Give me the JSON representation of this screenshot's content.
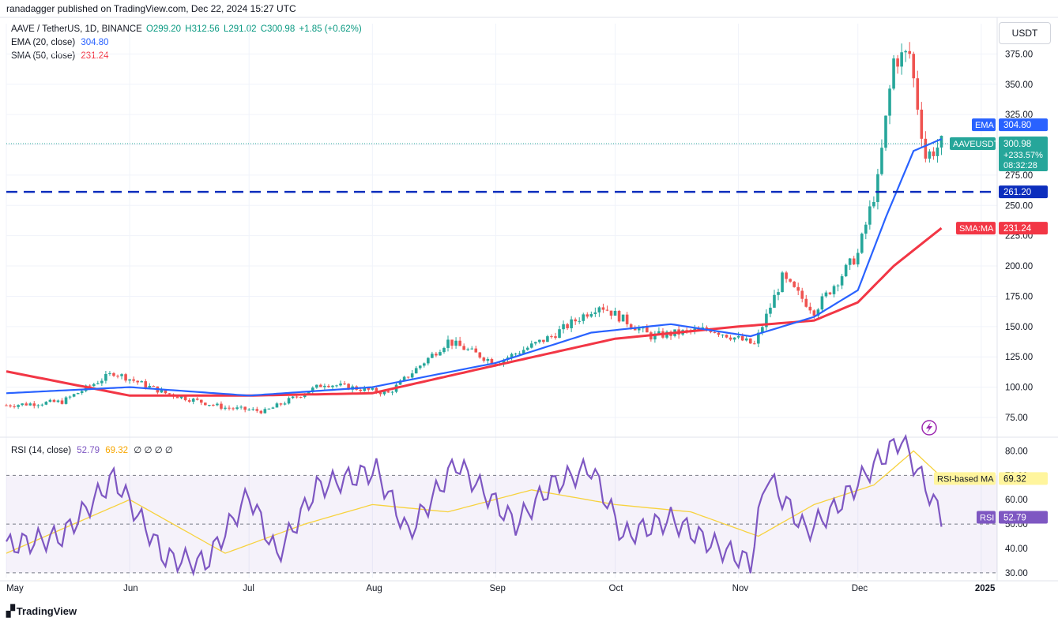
{
  "header": {
    "published": "ranadagger published on TradingView.com, Dec 22, 2024 15:27 UTC"
  },
  "legend": {
    "symbol": "AAVE / TetherUS, 1D, BINANCE",
    "open": "O299.20",
    "high": "H312.56",
    "low": "L291.02",
    "close": "C300.98",
    "change": "+1.85 (+0.62%)",
    "ema_label": "EMA (20, close)",
    "ema_value": "304.80",
    "sma_label": "SMA (50, close)",
    "sma_value": "231.24",
    "rsi_label": "RSI (14, close)",
    "rsi_value": "52.79",
    "rsi_ma_value": "69.32",
    "rsi_extra": "∅ ∅ ∅ ∅"
  },
  "currency_button": "USDT",
  "footer": {
    "brand": "TradingView"
  },
  "colors": {
    "up": "#26a69a",
    "down": "#ef5350",
    "ema": "#2962ff",
    "sma": "#f23645",
    "rsi": "#7e57c2",
    "rsi_ma": "#f7d23e",
    "support": "#0c2ebd",
    "price_badge": "#26a69a"
  },
  "chart_data": [
    {
      "type": "line",
      "title": "AAVE / TetherUS, 1D, BINANCE",
      "ylabel": "USDT",
      "ylim": [
        60,
        400
      ],
      "y_ticks": [
        75,
        100,
        125,
        150,
        175,
        200,
        225,
        250,
        275,
        300,
        325,
        350,
        375
      ],
      "y_tick_labels": [
        "75.00",
        "100.00",
        "125.00",
        "150.00",
        "175.00",
        "200.00",
        "225.00",
        "250.00",
        "275.00",
        "300.00",
        "325.00",
        "350.00",
        "375.00"
      ],
      "x_ticks": [
        "May",
        "Jun",
        "Jul",
        "Aug",
        "Sep",
        "Oct",
        "Nov",
        "Dec",
        "2025"
      ],
      "x_range": [
        "2024-05-01",
        "2025-01-05"
      ],
      "series": [
        {
          "name": "AAVEUSDT",
          "kind": "close",
          "x": [
            "2024-05-01",
            "2024-05-15",
            "2024-05-28",
            "2024-06-10",
            "2024-06-25",
            "2024-07-05",
            "2024-07-20",
            "2024-08-05",
            "2024-08-20",
            "2024-09-01",
            "2024-09-15",
            "2024-09-27",
            "2024-10-10",
            "2024-10-25",
            "2024-11-05",
            "2024-11-12",
            "2024-11-20",
            "2024-12-01",
            "2024-12-06",
            "2024-12-10",
            "2024-12-14",
            "2024-12-18",
            "2024-12-22"
          ],
          "values": [
            85,
            88,
            112,
            95,
            83,
            80,
            103,
            95,
            138,
            120,
            142,
            168,
            142,
            148,
            135,
            190,
            163,
            210,
            270,
            370,
            375,
            290,
            300.98
          ]
        },
        {
          "name": "EMA",
          "x": [
            "2024-05-01",
            "2024-06-01",
            "2024-07-01",
            "2024-08-01",
            "2024-09-01",
            "2024-09-25",
            "2024-10-15",
            "2024-11-04",
            "2024-11-20",
            "2024-12-01",
            "2024-12-08",
            "2024-12-15",
            "2024-12-22"
          ],
          "values": [
            95,
            100,
            93,
            100,
            120,
            145,
            152,
            142,
            158,
            180,
            240,
            295,
            304.8
          ]
        },
        {
          "name": "SMA:MA",
          "x": [
            "2024-05-01",
            "2024-06-01",
            "2024-07-01",
            "2024-08-01",
            "2024-09-01",
            "2024-10-01",
            "2024-11-01",
            "2024-11-20",
            "2024-12-01",
            "2024-12-10",
            "2024-12-22"
          ],
          "values": [
            113,
            93,
            93,
            95,
            118,
            140,
            150,
            155,
            170,
            200,
            231.24
          ]
        }
      ],
      "support_level": {
        "value": 261.2,
        "label": "261.20"
      },
      "price_badge": {
        "symbol": "AAVEUSDT",
        "price": "300.98",
        "change": "+233.57%",
        "countdown": "08:32:28"
      },
      "ema_badge": {
        "label": "EMA",
        "value": "304.80"
      },
      "sma_badge": {
        "label": "SMA:MA",
        "value": "231.24"
      }
    },
    {
      "type": "line",
      "title": "RSI (14, close)",
      "ylim": [
        28,
        85
      ],
      "y_ticks": [
        30,
        40,
        50,
        60,
        70,
        80
      ],
      "y_tick_labels": [
        "30.00",
        "40.00",
        "50.00",
        "60.00",
        "70.00",
        "80.00"
      ],
      "bands": {
        "upper": 70,
        "lower": 30,
        "mid": 50
      },
      "series": [
        {
          "name": "RSI",
          "x": [
            "2024-05-01",
            "2024-05-15",
            "2024-05-28",
            "2024-06-10",
            "2024-06-20",
            "2024-07-01",
            "2024-07-08",
            "2024-07-18",
            "2024-08-02",
            "2024-08-10",
            "2024-08-22",
            "2024-09-06",
            "2024-09-15",
            "2024-09-25",
            "2024-10-03",
            "2024-10-15",
            "2024-10-25",
            "2024-11-04",
            "2024-11-08",
            "2024-11-18",
            "2024-11-25",
            "2024-12-05",
            "2024-12-12",
            "2024-12-15",
            "2024-12-22"
          ],
          "values": [
            41,
            45,
            69,
            36,
            34,
            62,
            37,
            65,
            72,
            46,
            75,
            50,
            66,
            73,
            45,
            52,
            42,
            34,
            70,
            47,
            56,
            74,
            85,
            75,
            52.79
          ]
        },
        {
          "name": "RSI-based MA",
          "x": [
            "2024-05-01",
            "2024-06-01",
            "2024-06-25",
            "2024-07-15",
            "2024-08-01",
            "2024-08-20",
            "2024-09-10",
            "2024-10-01",
            "2024-10-20",
            "2024-11-06",
            "2024-11-20",
            "2024-12-05",
            "2024-12-15",
            "2024-12-22"
          ],
          "values": [
            38,
            60,
            38,
            50,
            58,
            55,
            64,
            58,
            55,
            45,
            58,
            66,
            80,
            69.32
          ]
        }
      ],
      "rsi_badge": {
        "label": "RSI",
        "value": "52.79"
      },
      "rsi_ma_badge": {
        "label": "RSI-based MA",
        "value": "69.32"
      }
    }
  ]
}
